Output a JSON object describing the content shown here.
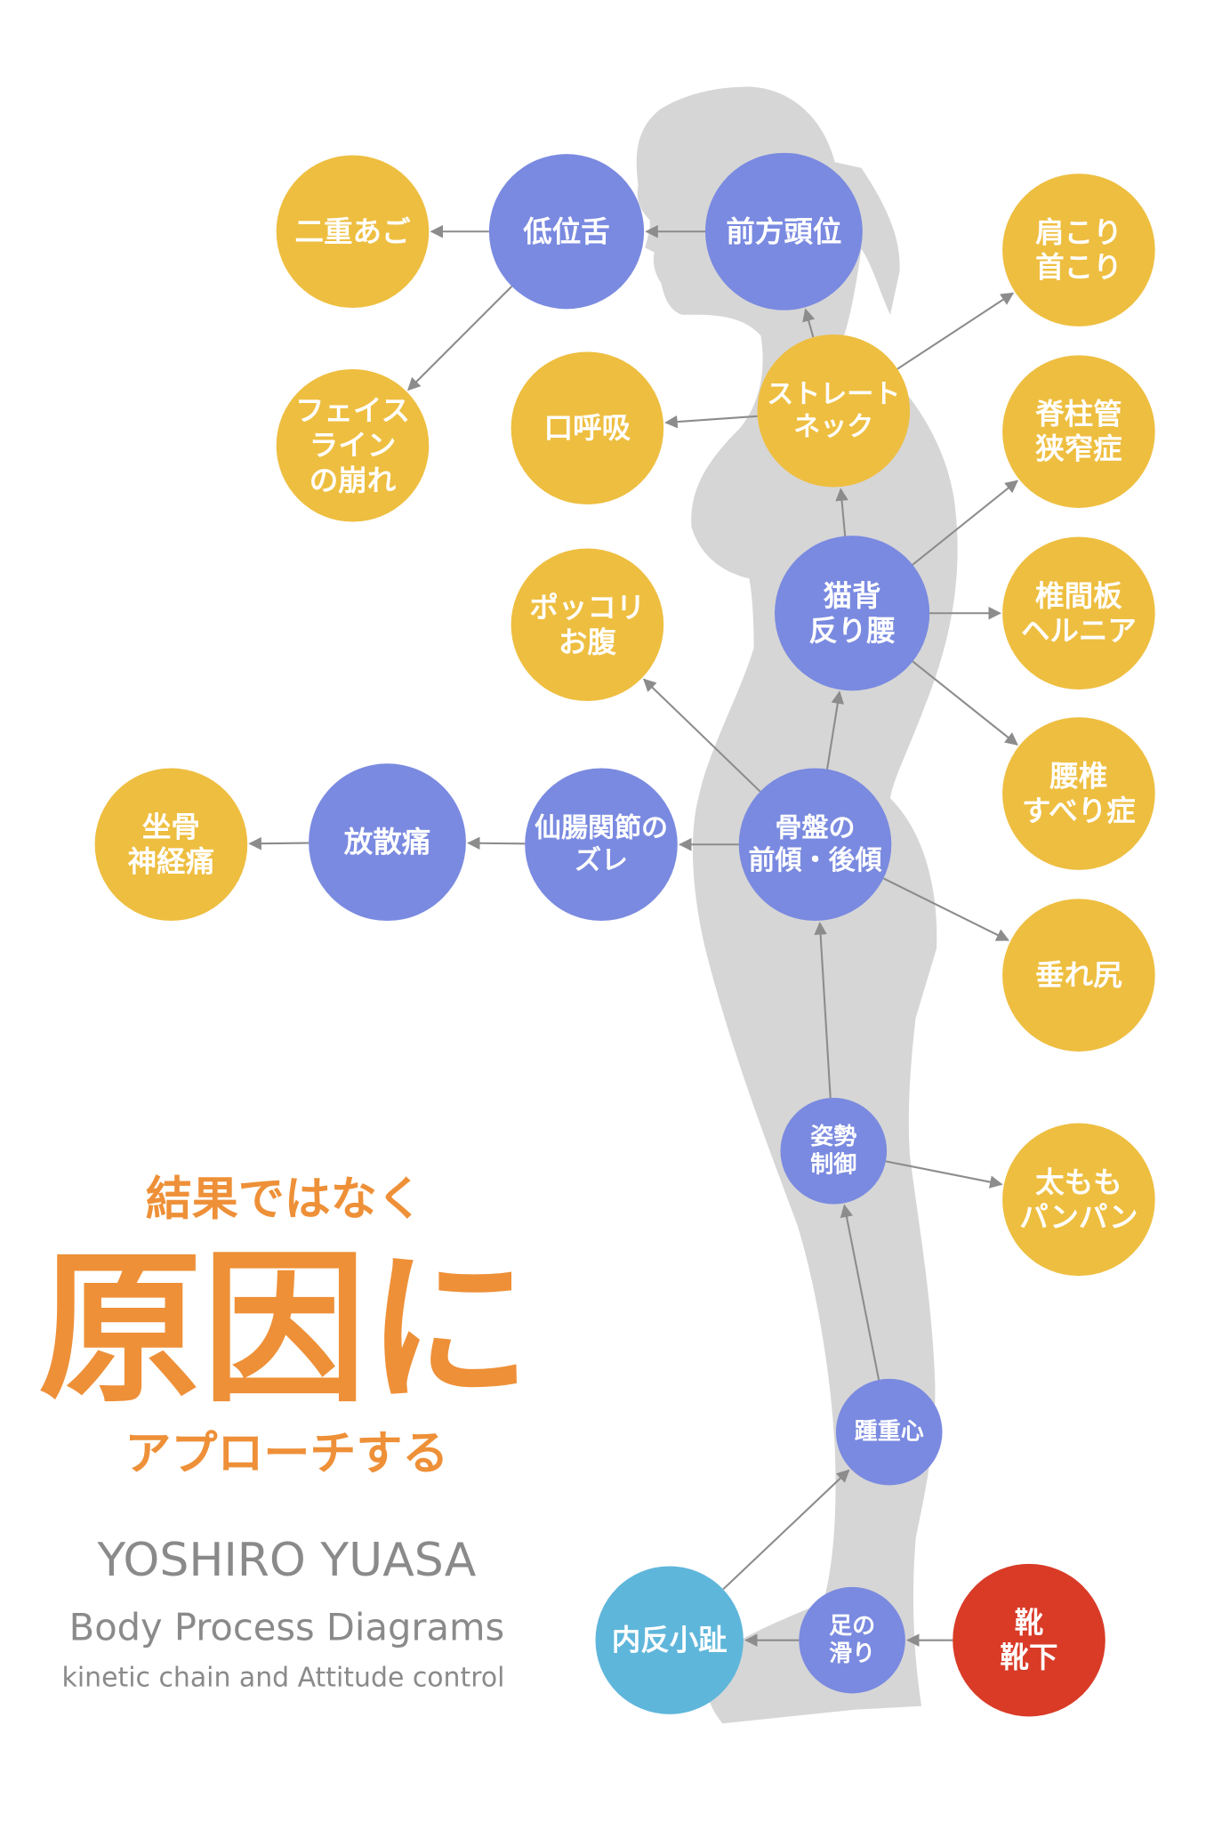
{
  "colors": {
    "effect": "#EEBE40",
    "process": "#7A8AE0",
    "origin_foot": "#5FB6DB",
    "root_cause": "#D93B27",
    "silhouette": "#D6D6D6",
    "arrow": "#8C8C8C",
    "headline": "#EE9038",
    "author": "#8A8A8A"
  },
  "nodes": [
    {
      "id": "double-chin",
      "type": "effect",
      "lines": [
        "二重あご"
      ]
    },
    {
      "id": "low-tongue",
      "type": "process",
      "lines": [
        "低位舌"
      ]
    },
    {
      "id": "forward-head",
      "type": "process",
      "lines": [
        "前方頭位"
      ]
    },
    {
      "id": "stiff-shoulders",
      "type": "effect",
      "lines": [
        "肩こり",
        "首こり"
      ]
    },
    {
      "id": "faceline",
      "type": "effect",
      "lines": [
        "フェイス",
        "ライン",
        "の崩れ"
      ]
    },
    {
      "id": "mouth-breathing",
      "type": "effect",
      "lines": [
        "口呼吸"
      ]
    },
    {
      "id": "straight-neck",
      "type": "effect",
      "lines": [
        "ストレート",
        "ネック"
      ]
    },
    {
      "id": "spinal-stenosis",
      "type": "effect",
      "lines": [
        "脊柱管",
        "狭窄症"
      ]
    },
    {
      "id": "belly",
      "type": "effect",
      "lines": [
        "ポッコリ",
        "お腹"
      ]
    },
    {
      "id": "hunchback",
      "type": "process",
      "lines": [
        "猫背",
        "反り腰"
      ]
    },
    {
      "id": "disc-hernia",
      "type": "effect",
      "lines": [
        "椎間板",
        "ヘルニア"
      ]
    },
    {
      "id": "spondylolisthesis",
      "type": "effect",
      "lines": [
        "腰椎",
        "すべり症"
      ]
    },
    {
      "id": "sciatica",
      "type": "effect",
      "lines": [
        "坐骨",
        "神経痛"
      ]
    },
    {
      "id": "radiating-pain",
      "type": "process",
      "lines": [
        "放散痛"
      ]
    },
    {
      "id": "si-joint",
      "type": "process",
      "lines": [
        "仙腸関節の",
        "ズレ"
      ]
    },
    {
      "id": "pelvis",
      "type": "process",
      "lines": [
        "骨盤の",
        "前傾・後傾"
      ]
    },
    {
      "id": "sagging-hips",
      "type": "effect",
      "lines": [
        "垂れ尻"
      ]
    },
    {
      "id": "posture-control",
      "type": "process",
      "lines": [
        "姿勢",
        "制御"
      ]
    },
    {
      "id": "thighs",
      "type": "effect",
      "lines": [
        "太もも",
        "パンパン"
      ]
    },
    {
      "id": "heel-weight",
      "type": "process",
      "lines": [
        "踵重心"
      ]
    },
    {
      "id": "bunionette",
      "type": "origin_foot",
      "lines": [
        "内反小趾"
      ]
    },
    {
      "id": "foot-slip",
      "type": "process",
      "lines": [
        "足の",
        "滑り"
      ]
    },
    {
      "id": "shoes-socks",
      "type": "root_cause",
      "lines": [
        "靴",
        "靴下"
      ]
    }
  ],
  "edges": [
    [
      "forward-head",
      "low-tongue"
    ],
    [
      "low-tongue",
      "double-chin"
    ],
    [
      "low-tongue",
      "faceline"
    ],
    [
      "straight-neck",
      "forward-head"
    ],
    [
      "straight-neck",
      "mouth-breathing"
    ],
    [
      "straight-neck",
      "stiff-shoulders"
    ],
    [
      "hunchback",
      "straight-neck"
    ],
    [
      "hunchback",
      "spinal-stenosis"
    ],
    [
      "hunchback",
      "disc-hernia"
    ],
    [
      "hunchback",
      "spondylolisthesis"
    ],
    [
      "pelvis",
      "hunchback"
    ],
    [
      "pelvis",
      "belly"
    ],
    [
      "pelvis",
      "si-joint"
    ],
    [
      "si-joint",
      "radiating-pain"
    ],
    [
      "radiating-pain",
      "sciatica"
    ],
    [
      "pelvis",
      "sagging-hips"
    ],
    [
      "posture-control",
      "pelvis"
    ],
    [
      "posture-control",
      "thighs"
    ],
    [
      "heel-weight",
      "posture-control"
    ],
    [
      "bunionette",
      "heel-weight"
    ],
    [
      "foot-slip",
      "bunionette"
    ],
    [
      "shoes-socks",
      "foot-slip"
    ]
  ],
  "headline": {
    "line1": "結果ではなく",
    "line2": "原因に",
    "line3": "アプローチする"
  },
  "credits": {
    "author": "YOSHIRO YUASA",
    "title": "Body Process Diagrams",
    "subtitle": "kinetic chain and Attitude control"
  }
}
